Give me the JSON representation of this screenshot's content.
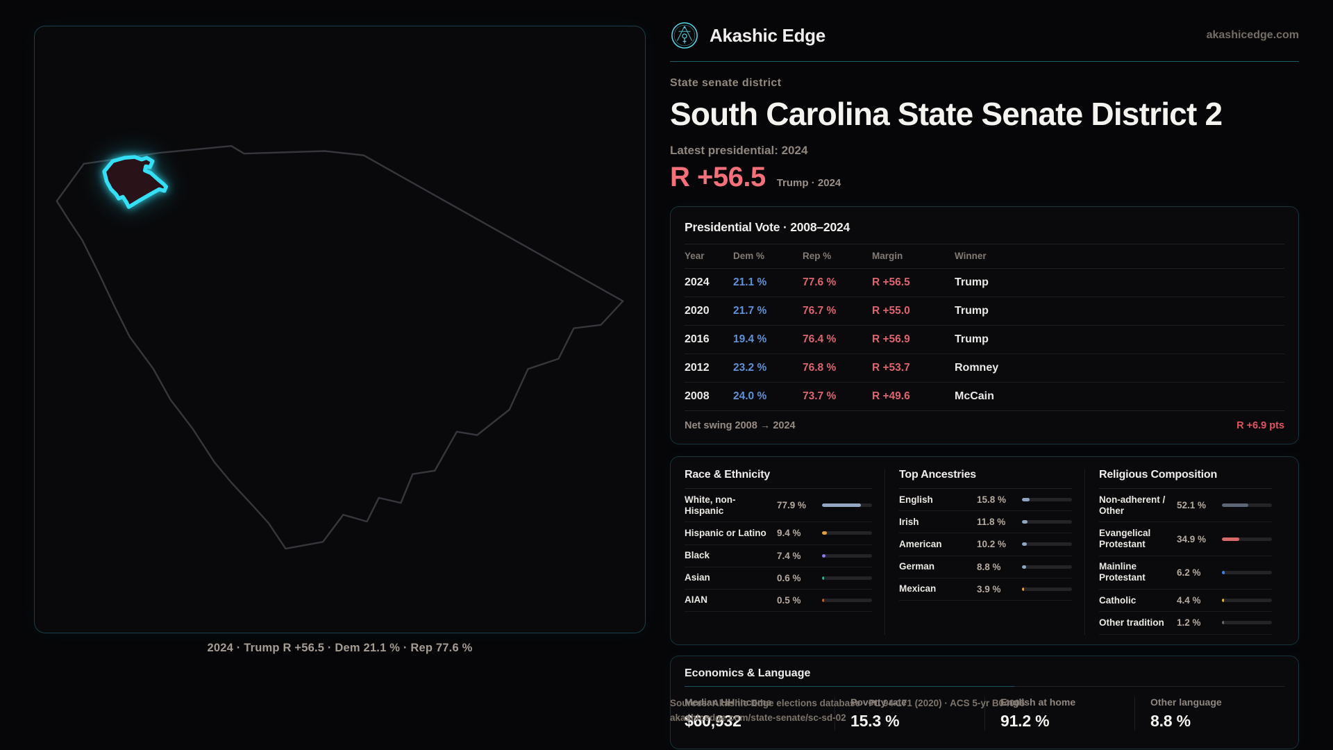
{
  "brand": {
    "name": "Akashic Edge",
    "domain": "akashicedge.com"
  },
  "page": {
    "kicker": "State senate district",
    "title": "South Carolina State Senate District 2",
    "latest_label": "Latest presidential: 2024",
    "margin_value": "R +56.5",
    "margin_context": "Trump · 2024"
  },
  "map": {
    "caption": "2024 · Trump R +56.5 · Dem 21.1 % · Rep 77.6 %",
    "district_highlight_color": "#35dff5"
  },
  "presidential": {
    "title": "Presidential Vote · 2008–2024",
    "columns": {
      "year": "Year",
      "dem": "Dem %",
      "rep": "Rep %",
      "margin": "Margin",
      "winner": "Winner"
    },
    "rows": [
      {
        "year": "2024",
        "dem": "21.1 %",
        "rep": "77.6 %",
        "margin": "R +56.5",
        "winner": "Trump"
      },
      {
        "year": "2020",
        "dem": "21.7 %",
        "rep": "76.7 %",
        "margin": "R +55.0",
        "winner": "Trump"
      },
      {
        "year": "2016",
        "dem": "19.4 %",
        "rep": "76.4 %",
        "margin": "R +56.9",
        "winner": "Trump"
      },
      {
        "year": "2012",
        "dem": "23.2 %",
        "rep": "76.8 %",
        "margin": "R +53.7",
        "winner": "Romney"
      },
      {
        "year": "2008",
        "dem": "24.0 %",
        "rep": "73.7 %",
        "margin": "R +49.6",
        "winner": "McCain"
      }
    ],
    "net_swing_label": "Net swing 2008 → 2024",
    "net_swing_value": "R +6.9 pts"
  },
  "demographics": {
    "race": {
      "title": "Race & Ethnicity",
      "rows": [
        {
          "label": "White, non-Hispanic",
          "value": "77.9 %",
          "pct": 77.9,
          "color": "#93a7c4"
        },
        {
          "label": "Hispanic or Latino",
          "value": "9.4 %",
          "pct": 9.4,
          "color": "#e2a23b"
        },
        {
          "label": "Black",
          "value": "7.4 %",
          "pct": 7.4,
          "color": "#8d7bed"
        },
        {
          "label": "Asian",
          "value": "0.6 %",
          "pct": 0.6,
          "color": "#2fae8f"
        },
        {
          "label": "AIAN",
          "value": "0.5 %",
          "pct": 0.5,
          "color": "#c0622f"
        }
      ]
    },
    "ancestries": {
      "title": "Top Ancestries",
      "rows": [
        {
          "label": "English",
          "value": "15.8 %",
          "pct": 15.8,
          "color": "#8fa6c2"
        },
        {
          "label": "Irish",
          "value": "11.8 %",
          "pct": 11.8,
          "color": "#8fa6c2"
        },
        {
          "label": "American",
          "value": "10.2 %",
          "pct": 10.2,
          "color": "#8fa6c2"
        },
        {
          "label": "German",
          "value": "8.8 %",
          "pct": 8.8,
          "color": "#8fa6c2"
        },
        {
          "label": "Mexican",
          "value": "3.9 %",
          "pct": 3.9,
          "color": "#e2a23b"
        }
      ]
    },
    "religion": {
      "title": "Religious Composition",
      "rows": [
        {
          "label": "Non-adherent / Other",
          "value": "52.1 %",
          "pct": 52.1,
          "color": "#5d6676"
        },
        {
          "label": "Evangelical Protestant",
          "value": "34.9 %",
          "pct": 34.9,
          "color": "#d96a6a"
        },
        {
          "label": "Mainline Protestant",
          "value": "6.2 %",
          "pct": 6.2,
          "color": "#3b82e8"
        },
        {
          "label": "Catholic",
          "value": "4.4 %",
          "pct": 4.4,
          "color": "#e3b93c"
        },
        {
          "label": "Other tradition",
          "value": "1.2 %",
          "pct": 1.2,
          "color": "#6a6a6a"
        }
      ]
    }
  },
  "economics": {
    "title": "Economics & Language",
    "stats": [
      {
        "label": "Median HH income",
        "value": "$60,932"
      },
      {
        "label": "Poverty rate",
        "value": "15.3 %"
      },
      {
        "label": "English at home",
        "value": "91.2 %"
      },
      {
        "label": "Other language",
        "value": "8.8 %"
      }
    ]
  },
  "footer": {
    "sources": "Sources: Akashic Edge elections database · PL 94-171 (2020) · ACS 5-yr B04006",
    "permalink": "akashicedge.com/state-senate/sc-sd-02"
  }
}
